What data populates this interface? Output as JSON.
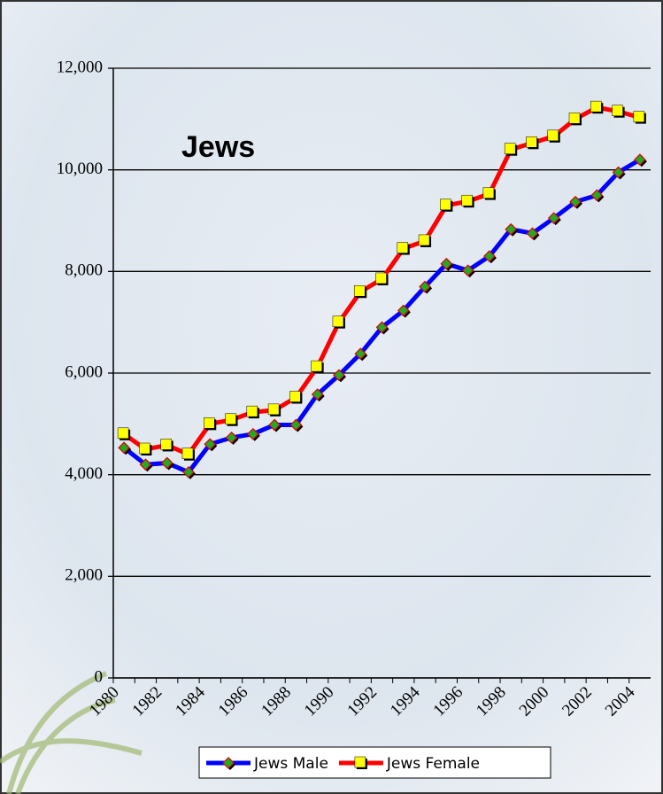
{
  "chart_data": {
    "type": "line",
    "title": "Jews",
    "categories": [
      "1980",
      null,
      "1982",
      null,
      "1984",
      null,
      "1986",
      null,
      "1988",
      null,
      "1990",
      null,
      "1992",
      null,
      "1994",
      null,
      "1996",
      null,
      "1998",
      null,
      "2000",
      null,
      "2002",
      null,
      "2004"
    ],
    "series": [
      {
        "name": "Jews Male",
        "color": "#0000ff",
        "marker_color": "#22aa22",
        "values": [
          4530,
          4200,
          4230,
          4050,
          4600,
          4730,
          4800,
          4980,
          4980,
          5580,
          5960,
          6380,
          6900,
          7230,
          7700,
          8150,
          8020,
          8300,
          8830,
          8750,
          9050,
          9370,
          9500,
          9950,
          10200
        ]
      },
      {
        "name": "Jews Female",
        "color": "#ff0000",
        "marker_color": "#ffff00",
        "values": [
          4800,
          4500,
          4580,
          4400,
          5000,
          5080,
          5230,
          5270,
          5520,
          6120,
          7000,
          7600,
          7850,
          8450,
          8600,
          9300,
          9380,
          9530,
          10400,
          10530,
          10660,
          11000,
          11230,
          11150,
          11030
        ]
      }
    ],
    "ylim": [
      0,
      12000
    ],
    "yticks": [
      0,
      {
        "value": 2000,
        "label": "2,000"
      },
      {
        "value": 4000,
        "label": "4,000"
      },
      {
        "value": 6000,
        "label": "6,000"
      },
      {
        "value": 8000,
        "label": "8,000"
      },
      {
        "value": 10000,
        "label": "10,000"
      },
      {
        "value": 12000,
        "label": "12,000"
      }
    ],
    "grid": true,
    "legend": "bottom"
  }
}
